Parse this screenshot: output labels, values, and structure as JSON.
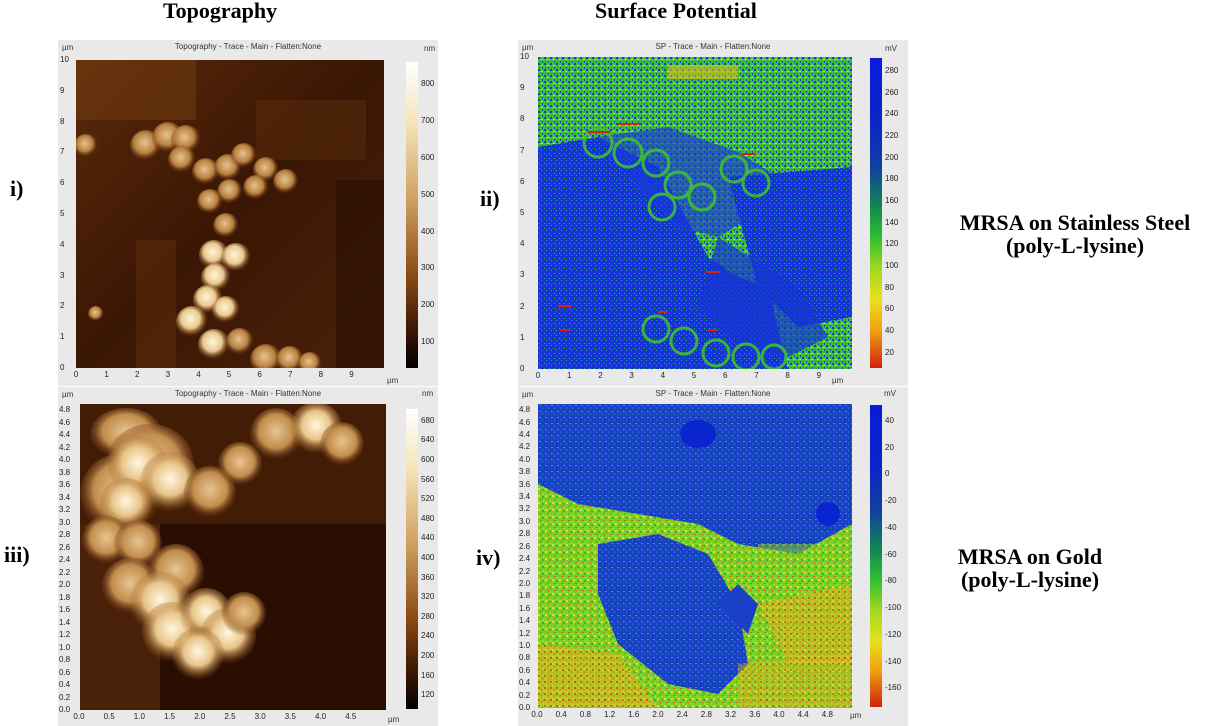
{
  "headings": {
    "topography": "Topography",
    "surface_potential": "Surface Potential"
  },
  "row_labels": [
    "i)",
    "ii)",
    "iii)",
    "iv)"
  ],
  "captions": {
    "steel_line1": "MRSA on Stainless Steel",
    "steel_line2": "(poly-L-lysine)",
    "gold_line1": "MRSA on Gold",
    "gold_line2": "(poly-L-lysine)"
  },
  "panels": {
    "p1": {
      "title": "Topography - Trace - Main - Flatten:None",
      "unit_xy": "µm",
      "unit_x_end": "µm",
      "unit_cbar": "nm",
      "y_ticks": [
        "0",
        "1",
        "2",
        "3",
        "4",
        "5",
        "6",
        "7",
        "8",
        "9",
        "10"
      ],
      "x_ticks": [
        "0",
        "1",
        "2",
        "3",
        "4",
        "5",
        "6",
        "7",
        "8",
        "9"
      ],
      "cbar_ticks": [
        "800",
        "700",
        "600",
        "500",
        "400",
        "300",
        "200",
        "100"
      ]
    },
    "p2": {
      "title": "SP - Trace - Main - Flatten:None",
      "unit_xy": "µm",
      "unit_x_end": "µm",
      "unit_cbar": "mV",
      "y_ticks": [
        "0",
        "1",
        "2",
        "3",
        "4",
        "5",
        "6",
        "7",
        "8",
        "9",
        "10"
      ],
      "x_ticks": [
        "0",
        "1",
        "2",
        "3",
        "4",
        "5",
        "6",
        "7",
        "8",
        "9"
      ],
      "cbar_ticks": [
        "280",
        "260",
        "240",
        "220",
        "200",
        "180",
        "160",
        "140",
        "120",
        "100",
        "80",
        "60",
        "40",
        "20"
      ]
    },
    "p3": {
      "title": "Topography - Trace - Main - Flatten:None",
      "unit_xy": "µm",
      "unit_x_end": "µm",
      "unit_cbar": "nm",
      "y_ticks": [
        "0.0",
        "0.2",
        "0.4",
        "0.6",
        "0.8",
        "1.0",
        "1.2",
        "1.4",
        "1.6",
        "1.8",
        "2.0",
        "2.2",
        "2.4",
        "2.6",
        "2.8",
        "3.0",
        "3.2",
        "3.4",
        "3.6",
        "3.8",
        "4.0",
        "4.2",
        "4.4",
        "4.6",
        "4.8"
      ],
      "x_ticks": [
        "0.0",
        "0.5",
        "1.0",
        "1.5",
        "2.0",
        "2.5",
        "3.0",
        "3.5",
        "4.0",
        "4.5"
      ],
      "cbar_ticks": [
        "680",
        "640",
        "600",
        "560",
        "520",
        "480",
        "440",
        "400",
        "360",
        "320",
        "280",
        "240",
        "200",
        "160",
        "120"
      ]
    },
    "p4": {
      "title": "SP - Trace - Main - Flatten:None",
      "unit_xy": "µm",
      "unit_x_end": "µm",
      "unit_cbar": "mV",
      "y_ticks": [
        "0.0",
        "0.2",
        "0.4",
        "0.6",
        "0.8",
        "1.0",
        "1.2",
        "1.4",
        "1.6",
        "1.8",
        "2.0",
        "2.2",
        "2.4",
        "2.6",
        "2.8",
        "3.0",
        "3.2",
        "3.4",
        "3.6",
        "3.8",
        "4.0",
        "4.2",
        "4.4",
        "4.6",
        "4.8"
      ],
      "x_ticks": [
        "0.0",
        "0.4",
        "0.8",
        "1.2",
        "1.6",
        "2.0",
        "2.4",
        "2.8",
        "3.2",
        "3.6",
        "4.0",
        "4.4",
        "4.8"
      ],
      "cbar_ticks": [
        "40",
        "20",
        "0",
        "-20",
        "-40",
        "-60",
        "-80",
        "-100",
        "-120",
        "-140",
        "-160"
      ]
    }
  },
  "colors": {
    "topo_dark": "#1a0a00",
    "topo_mid": "#8a4a12",
    "topo_light": "#f5e2b0",
    "sp_blue": "#1030d8",
    "sp_green": "#40c828",
    "sp_yellow": "#e8e020",
    "sp_red": "#d02010"
  }
}
